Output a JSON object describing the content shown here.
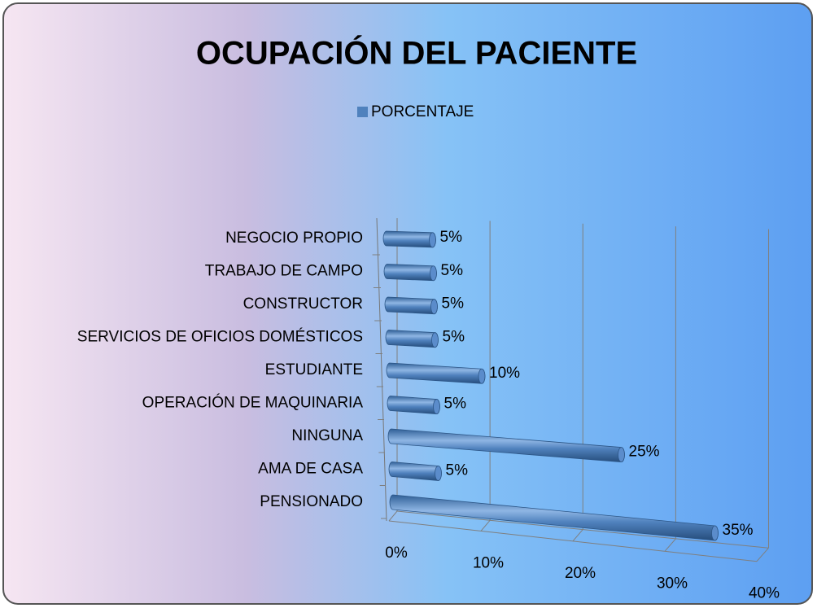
{
  "chart_data": {
    "type": "bar3d_horizontal",
    "title": "OCUPACIÓN DEL PACIENTE",
    "categories": [
      "PENSIONADO",
      "AMA DE CASA",
      "NINGUNA",
      "OPERACIÓN DE MAQUINARIA",
      "ESTUDIANTE",
      "SERVICIOS DE OFICIOS DOMÉSTICOS",
      "CONSTRUCTOR",
      "TRABAJO DE CAMPO",
      "NEGOCIO PROPIO"
    ],
    "series": [
      {
        "name": "PORCENTAJE",
        "color": "#4f81bd",
        "values": [
          35,
          5,
          25,
          5,
          10,
          5,
          5,
          5,
          5
        ],
        "value_labels": [
          "35%",
          "5%",
          "25%",
          "5%",
          "10%",
          "5%",
          "5%",
          "5%",
          "5%"
        ]
      }
    ],
    "xlim": [
      0,
      40
    ],
    "xticks": [
      {
        "value": 0,
        "label": "0%"
      },
      {
        "value": 10,
        "label": "10%"
      },
      {
        "value": 20,
        "label": "20%"
      },
      {
        "value": 30,
        "label": "30%"
      },
      {
        "value": 40,
        "label": "40%"
      }
    ],
    "grid": true,
    "legend": "top"
  }
}
